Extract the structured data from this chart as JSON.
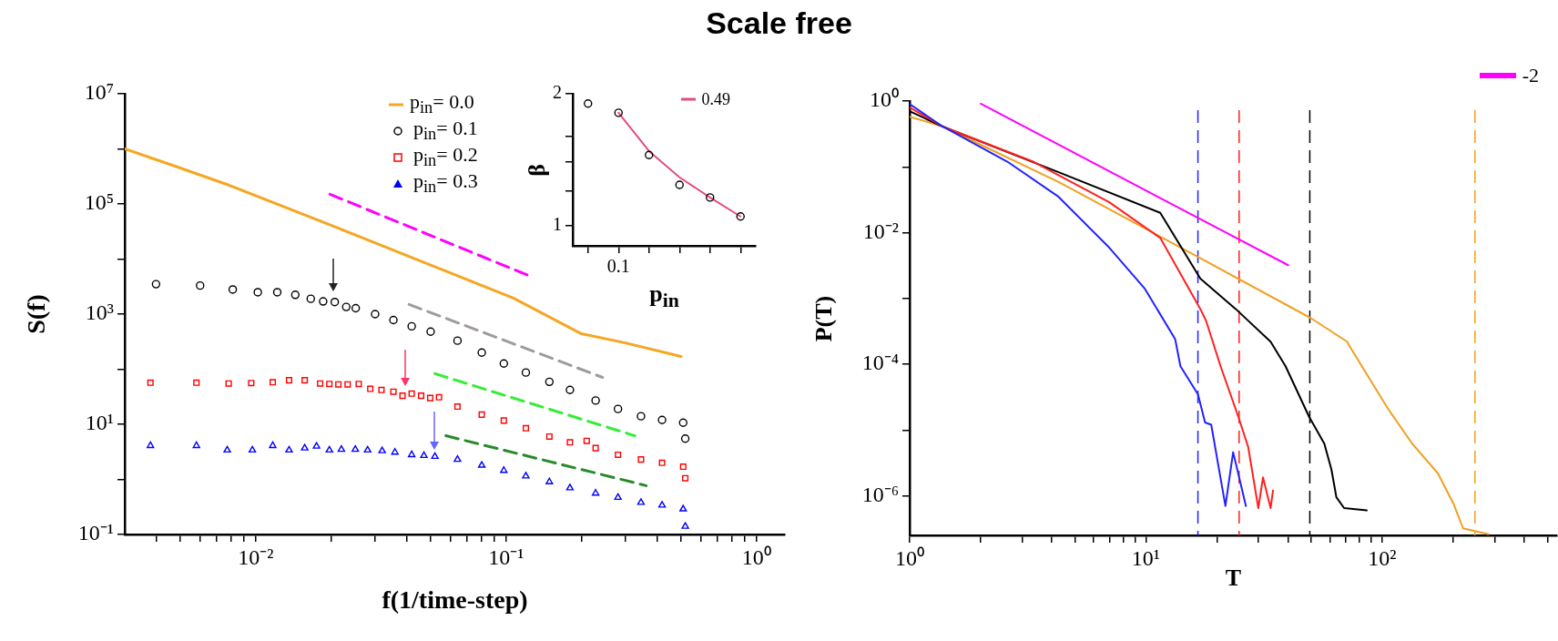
{
  "chart_data": [
    {
      "type": "scatter",
      "title": "Scale free",
      "xlabel": "f(1/time-step)",
      "ylabel": "S(f)",
      "log": "xy",
      "legend": "top",
      "xlim": [
        0.003,
        1.3
      ],
      "ylim": [
        0.1,
        10000000
      ],
      "xticks": [
        {
          "value": 0.004,
          "label": null
        },
        {
          "value": 0.005,
          "label": null
        },
        {
          "value": 0.006,
          "label": null
        },
        {
          "value": 0.007,
          "label": null
        },
        {
          "value": 0.008,
          "label": null
        },
        {
          "value": 0.009,
          "label": null
        },
        {
          "value": 0.01,
          "label": "10⁻²"
        },
        {
          "value": 0.02,
          "label": null
        },
        {
          "value": 0.03,
          "label": null
        },
        {
          "value": 0.04,
          "label": null
        },
        {
          "value": 0.05,
          "label": null
        },
        {
          "value": 0.06,
          "label": null
        },
        {
          "value": 0.07,
          "label": null
        },
        {
          "value": 0.08,
          "label": null
        },
        {
          "value": 0.09,
          "label": null
        },
        {
          "value": 0.1,
          "label": "10⁻¹"
        },
        {
          "value": 0.2,
          "label": null
        },
        {
          "value": 0.3,
          "label": null
        },
        {
          "value": 0.4,
          "label": null
        },
        {
          "value": 0.5,
          "label": null
        },
        {
          "value": 0.6,
          "label": null
        },
        {
          "value": 0.7,
          "label": null
        },
        {
          "value": 0.8,
          "label": null
        },
        {
          "value": 0.9,
          "label": null
        },
        {
          "value": 1,
          "label": "10⁰"
        }
      ],
      "yticks": [
        {
          "value": 0.1,
          "label": "10⁻¹"
        },
        {
          "value": 1,
          "label": null
        },
        {
          "value": 10,
          "label": "10¹"
        },
        {
          "value": 100,
          "label": null
        },
        {
          "value": 1000,
          "label": "10³"
        },
        {
          "value": 10000,
          "label": null
        },
        {
          "value": 100000,
          "label": "10⁵"
        },
        {
          "value": 1000000,
          "label": null
        },
        {
          "value": 10000000,
          "label": "10⁷"
        }
      ],
      "series": [
        {
          "type": "line",
          "name": "p$_{in}$= 0.0",
          "color": "#f5a623",
          "marker": "none",
          "x": [
            0.003,
            0.005,
            0.0078,
            0.02,
            0.05,
            0.107,
            0.2,
            0.3,
            0.5
          ],
          "values": [
            1000000,
            450000,
            220000,
            41000,
            7800,
            1950,
            440,
            300,
            170
          ]
        },
        {
          "type": "scatter",
          "name": "p$_{in}$= 0.1",
          "color": "#000000",
          "marker": "circle",
          "x": [
            0.004,
            0.006,
            0.0081,
            0.0102,
            0.0122,
            0.0144,
            0.0166,
            0.0186,
            0.0207,
            0.023,
            0.0251,
            0.03,
            0.0355,
            0.042,
            0.05,
            0.064,
            0.08,
            0.098,
            0.12,
            0.149,
            0.18,
            0.228,
            0.28,
            0.346,
            0.42,
            0.51,
            0.52
          ],
          "values": [
            3500,
            3300,
            2800,
            2500,
            2500,
            2240,
            1900,
            1700,
            1660,
            1350,
            1280,
            1000,
            780,
            600,
            480,
            330,
            200,
            127,
            87,
            59,
            42,
            27,
            19,
            14,
            12,
            10.7,
            5.5
          ]
        },
        {
          "type": "scatter",
          "name": "p$_{in}$= 0.2",
          "color": "#ff0000",
          "marker": "square",
          "x": [
            0.0038,
            0.0058,
            0.0078,
            0.0096,
            0.0117,
            0.0136,
            0.0157,
            0.0181,
            0.0197,
            0.0214,
            0.0233,
            0.0258,
            0.0287,
            0.0318,
            0.0355,
            0.0386,
            0.042,
            0.0458,
            0.0498,
            0.054,
            0.064,
            0.08,
            0.098,
            0.12,
            0.149,
            0.18,
            0.21,
            0.228,
            0.28,
            0.346,
            0.42,
            0.51,
            0.52
          ],
          "values": [
            57,
            57,
            55,
            56,
            58,
            63,
            63,
            55,
            54,
            53,
            53,
            54,
            44,
            42,
            39,
            33,
            36,
            33,
            30,
            31,
            21,
            15,
            11.7,
            8.5,
            6,
            4.7,
            5,
            3.7,
            2.8,
            2.3,
            2,
            1.7,
            1.05
          ]
        },
        {
          "type": "scatter",
          "name": "p$_{in}$= 0.3",
          "color": "#0000ff",
          "marker": "triangle",
          "x": [
            0.0038,
            0.0058,
            0.0077,
            0.0097,
            0.0117,
            0.0136,
            0.0157,
            0.0175,
            0.0197,
            0.022,
            0.025,
            0.028,
            0.032,
            0.036,
            0.042,
            0.047,
            0.052,
            0.064,
            0.08,
            0.098,
            0.12,
            0.149,
            0.18,
            0.228,
            0.28,
            0.346,
            0.42,
            0.51,
            0.52
          ],
          "values": [
            4.1,
            4.1,
            3.4,
            3.4,
            4.1,
            3.4,
            3.7,
            4,
            3.4,
            3.5,
            3.5,
            3.4,
            3.3,
            3.1,
            2.8,
            2.7,
            2.6,
            2.3,
            1.8,
            1.45,
            1.15,
            0.9,
            0.7,
            0.56,
            0.47,
            0.38,
            0.34,
            0.29,
            0.14
          ]
        },
        {
          "type": "line",
          "color": "#ff00ff",
          "line_style": "dashed",
          "marker": "none",
          "x": [
            0.0198,
            0.122
          ],
          "values": [
            150000,
            5100
          ]
        },
        {
          "type": "line",
          "color": "#a09a9a",
          "line_style": "dashed",
          "marker": "none",
          "x": [
            0.041,
            0.243
          ],
          "values": [
            1500,
            71
          ]
        },
        {
          "type": "line",
          "color": "#33ee33",
          "line_style": "dashed",
          "marker": "none",
          "x": [
            0.052,
            0.327
          ],
          "values": [
            83,
            6.2
          ]
        },
        {
          "type": "line",
          "color": "#2a8a2a",
          "line_style": "dashed",
          "marker": "none",
          "x": [
            0.0575,
            0.363
          ],
          "values": [
            6.2,
            0.77
          ]
        }
      ]
    },
    {
      "type": "scatter",
      "xlabel": "p$_{in}$",
      "ylabel": "β",
      "log": "y",
      "legend": "top right",
      "categories": [
        null,
        "0.1",
        null,
        null,
        null,
        null
      ],
      "ylim": [
        0.9,
        2
      ],
      "yticks": [
        1,
        {
          "value": 1.2,
          "label": null
        },
        {
          "value": 1.4,
          "label": null
        },
        {
          "value": 1.6,
          "label": null
        },
        2
      ],
      "series": [
        {
          "type": "scatter",
          "color": "#000000",
          "marker": "circle",
          "values": [
            1.9,
            1.81,
            1.45,
            1.24,
            1.16,
            1.05
          ]
        },
        {
          "type": "line",
          "name": "0.49",
          "color": "#e0507a",
          "marker": "none",
          "values": [
            null,
            1.81,
            1.48,
            1.29,
            1.16,
            1.05
          ]
        }
      ]
    },
    {
      "type": "line",
      "xlabel": "T",
      "ylabel": "P(T)",
      "log": "xy",
      "legend": "top right",
      "xlim": [
        1,
        550
      ],
      "ylim": [
        2.5e-07,
        1
      ],
      "xticks": [
        {
          "value": 1,
          "label": "10⁰"
        },
        {
          "value": 2,
          "label": null
        },
        {
          "value": 3,
          "label": null
        },
        {
          "value": 4,
          "label": null
        },
        {
          "value": 5,
          "label": null
        },
        {
          "value": 6,
          "label": null
        },
        {
          "value": 7,
          "label": null
        },
        {
          "value": 8,
          "label": null
        },
        {
          "value": 9,
          "label": null
        },
        {
          "value": 10,
          "label": "10¹"
        },
        {
          "value": 20,
          "label": null
        },
        {
          "value": 30,
          "label": null
        },
        {
          "value": 40,
          "label": null
        },
        {
          "value": 50,
          "label": null
        },
        {
          "value": 60,
          "label": null
        },
        {
          "value": 70,
          "label": null
        },
        {
          "value": 80,
          "label": null
        },
        {
          "value": 90,
          "label": null
        },
        {
          "value": 100,
          "label": "10²"
        },
        {
          "value": 200,
          "label": null
        },
        {
          "value": 300,
          "label": null
        },
        {
          "value": 400,
          "label": null
        },
        {
          "value": 500,
          "label": null
        }
      ],
      "yticks": [
        {
          "value": 1e-06,
          "label": "10⁻⁶"
        },
        {
          "value": 1e-05,
          "label": null
        },
        {
          "value": 0.0001,
          "label": "10⁻⁴"
        },
        {
          "value": 0.001,
          "label": null
        },
        {
          "value": 0.01,
          "label": "10⁻²"
        },
        {
          "value": 0.1,
          "label": null
        },
        {
          "value": 1,
          "label": "10⁰"
        }
      ],
      "series": [
        {
          "color": "#2222ff",
          "x": [
            1,
            1.38,
            2.6,
            4.27,
            7,
            9.9,
            13.3,
            14,
            16.6,
            17.8,
            18.9,
            21.7,
            23.4,
            26.5
          ],
          "values": [
            0.9,
            0.41,
            0.119,
            0.035,
            0.0059,
            0.0014,
            0.00024,
            9.3e-05,
            3.5e-05,
            1.3e-05,
            1.2e-05,
            7e-07,
            4.6e-06,
            7e-07
          ]
        },
        {
          "color": "#ff2020",
          "x": [
            1,
            1.38,
            3.35,
            7,
            11.5,
            17,
            18,
            20.7,
            24.6,
            27.1,
            29.9,
            31.3,
            33.7,
            34.5
          ],
          "values": [
            0.8,
            0.41,
            0.119,
            0.029,
            0.0083,
            0.00069,
            0.00045,
            9.3e-05,
            1.6e-05,
            5.5e-06,
            6.5e-07,
            1.9e-06,
            6.5e-07,
            1.2e-06
          ]
        },
        {
          "color": "#000000",
          "x": [
            1,
            1.38,
            4.27,
            11.5,
            17,
            24,
            33.7,
            39,
            49,
            56.9,
            61,
            64,
            69,
            86
          ],
          "values": [
            0.7,
            0.41,
            0.083,
            0.02,
            0.002,
            0.00069,
            0.00022,
            9.3e-05,
            1.6e-05,
            6.2e-06,
            2.5e-06,
            9.5e-07,
            6.5e-07,
            6e-07
          ]
        },
        {
          "color": "#f0a020",
          "x": [
            1,
            1.38,
            4.27,
            16.2,
            50,
            71,
            74,
            105,
            134,
            172,
            200,
            220,
            282
          ],
          "values": [
            0.58,
            0.41,
            0.059,
            0.0045,
            0.0005,
            0.00022,
            0.00017,
            2.2e-05,
            6.2e-06,
            2.2e-06,
            7.7e-07,
            3.2e-07,
            2.6e-07
          ]
        },
        {
          "name": "-2",
          "color": "#ff00ff",
          "x": [
            2,
            40
          ],
          "values": [
            0.91,
            0.0032
          ]
        }
      ],
      "ref_lines": [
        {
          "axis": "x",
          "value": 16.6,
          "color": "#2222ff",
          "line_style": "dashed"
        },
        {
          "axis": "x",
          "value": 24.8,
          "color": "#ff2020",
          "line_style": "dashed"
        },
        {
          "axis": "x",
          "value": 49.4,
          "color": "#000000",
          "line_style": "dashed"
        },
        {
          "axis": "x",
          "value": 247,
          "color": "#f0a020",
          "line_style": "dashed"
        }
      ]
    }
  ]
}
